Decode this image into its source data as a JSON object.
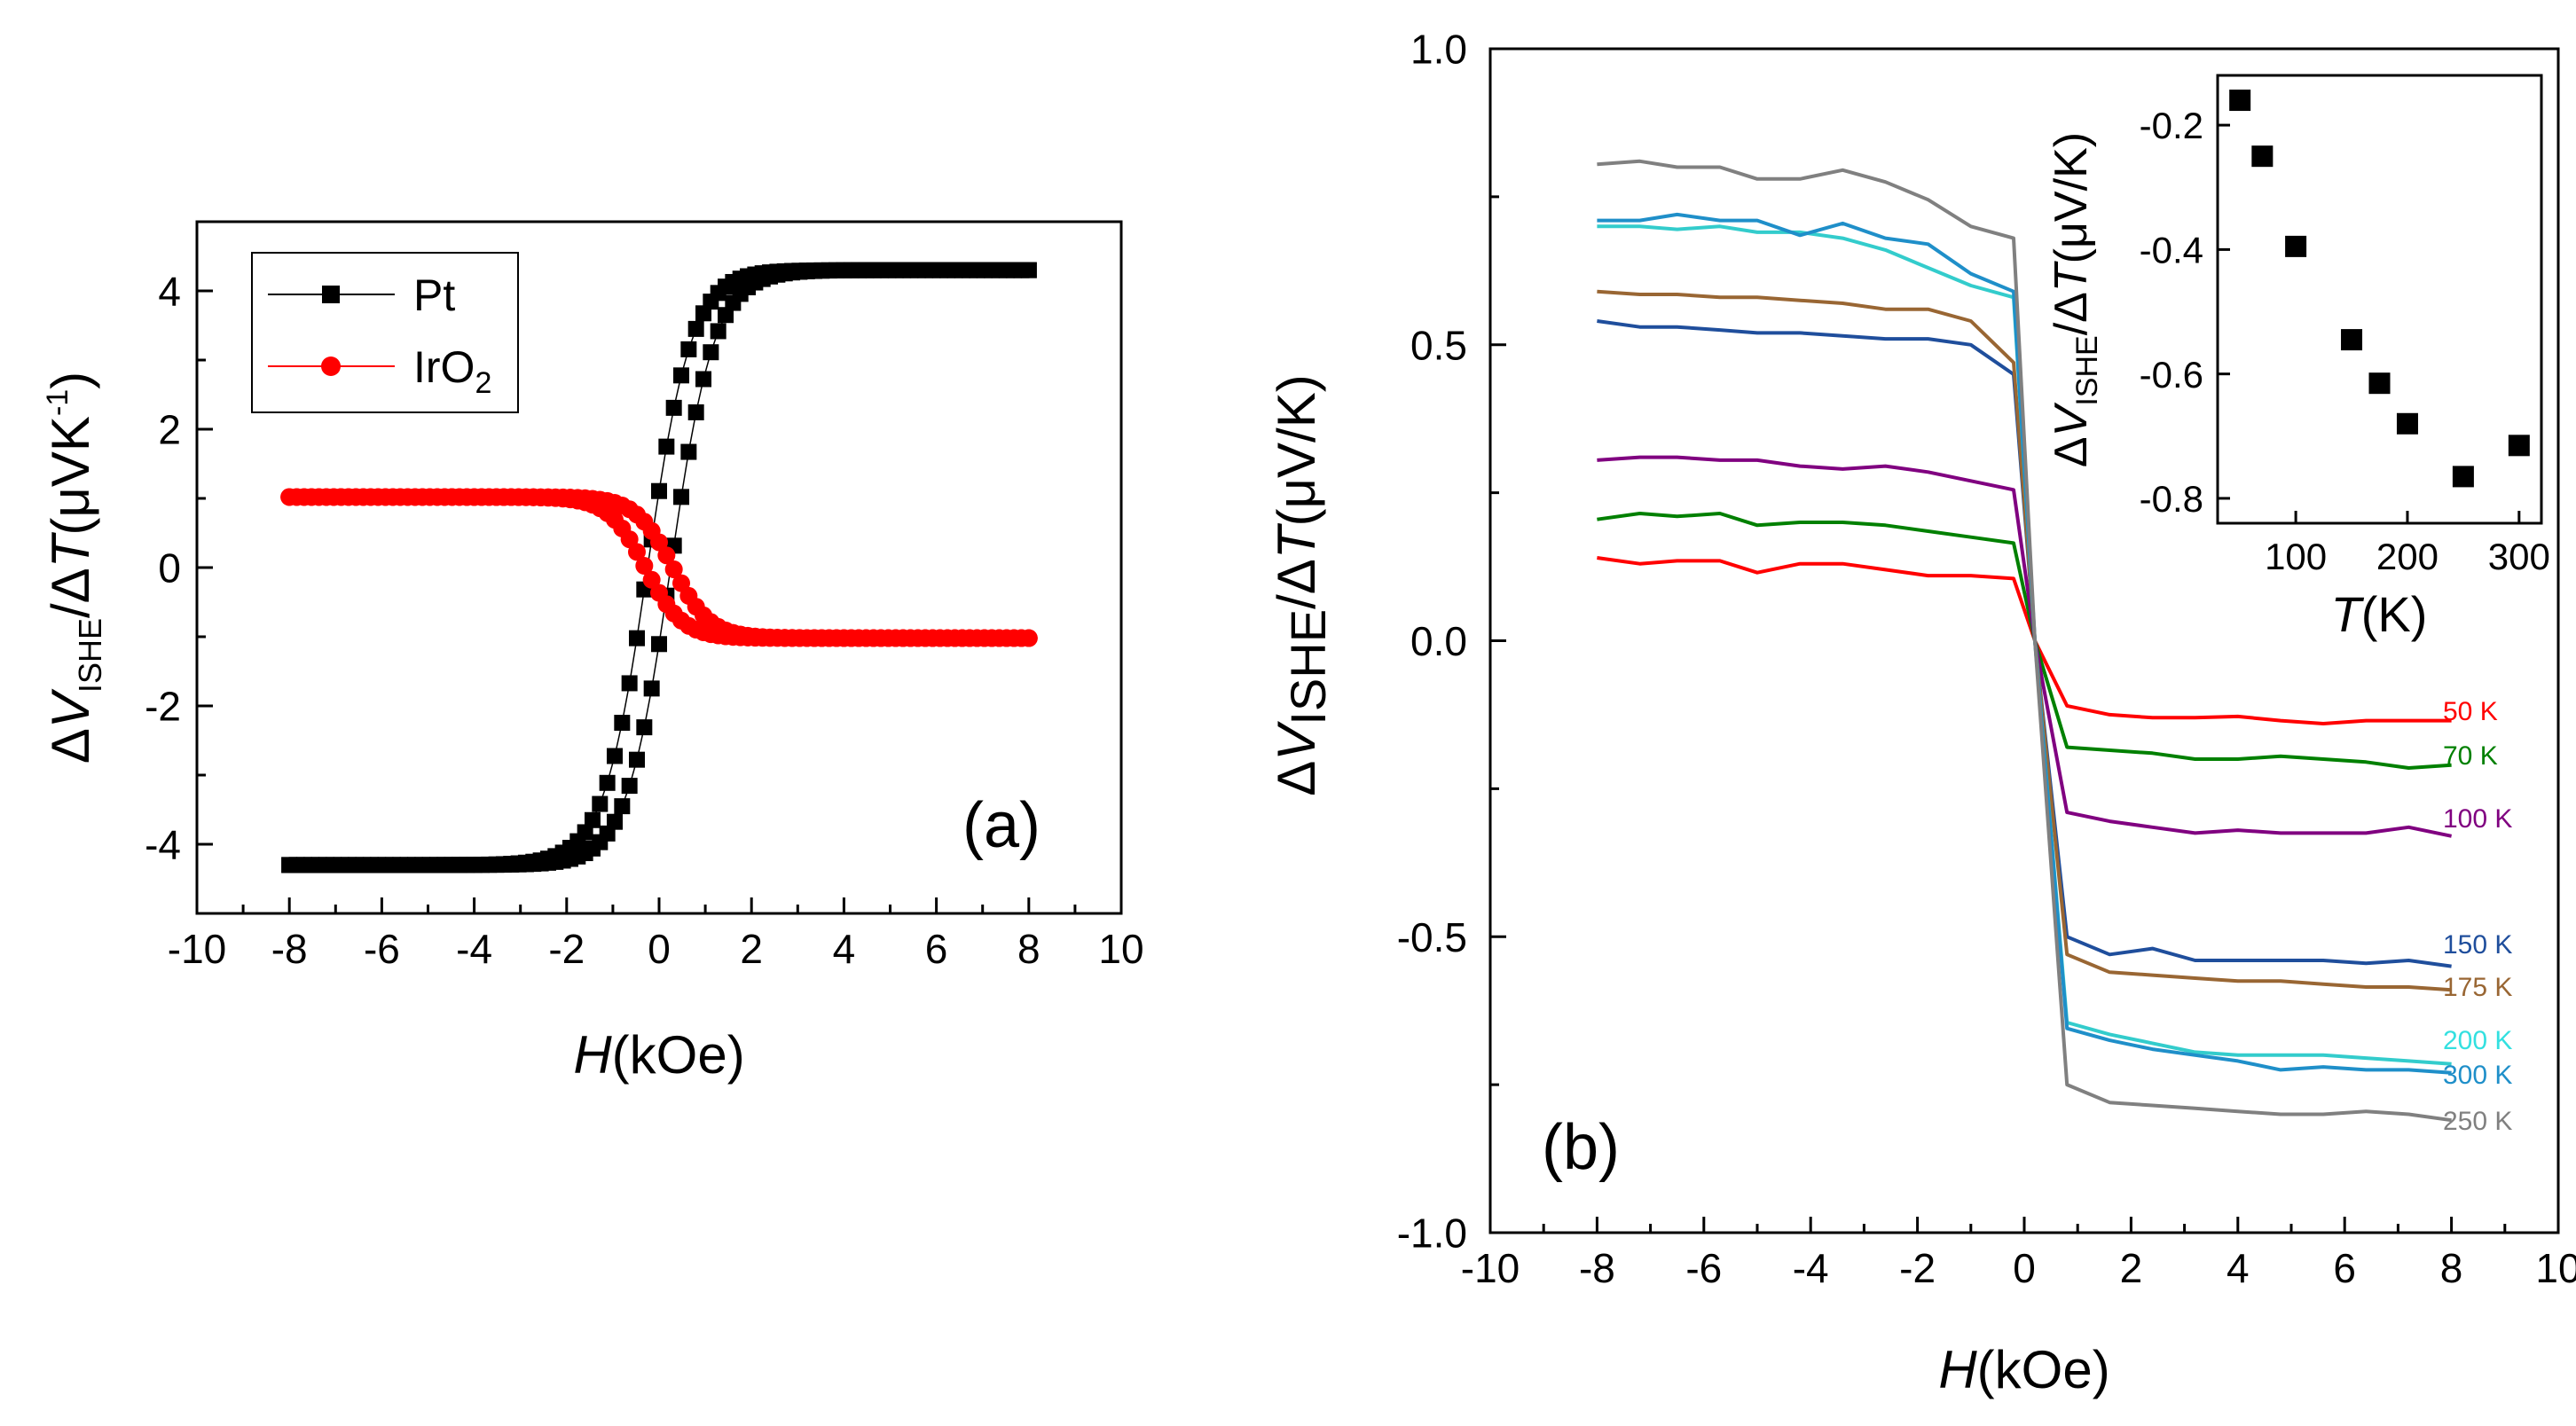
{
  "chart_data": [
    {
      "type": "scatter",
      "panel_label": "(a)",
      "xlabel_italic": "H",
      "xlabel_unit": "(kOe)",
      "ylabel": {
        "delta": "Δ",
        "v": "V",
        "sub": "ISHE",
        "slash": "/",
        "delta2": "Δ",
        "t": "T",
        "unit": "(μVK",
        "exp": "-1",
        "close": ")"
      },
      "xlim": [
        -10,
        10
      ],
      "ylim": [
        -5,
        5
      ],
      "xticks": [
        "-10",
        "-8",
        "-6",
        "-4",
        "-2",
        "0",
        "2",
        "4",
        "6",
        "8",
        "10"
      ],
      "yticks": [
        "-4",
        "-2",
        "0",
        "2",
        "4"
      ],
      "legend": [
        {
          "label": "Pt",
          "sub": "",
          "color": "#000000",
          "marker": "square"
        },
        {
          "label": "IrO",
          "sub": "2",
          "color": "#ff0000",
          "marker": "circle"
        }
      ],
      "series": [
        {
          "name": "Pt",
          "color": "#000000",
          "marker": "square",
          "sat": 4.3,
          "coercive": 0.25,
          "width": 0.95
        },
        {
          "name": "IrO2",
          "color": "#ff0000",
          "marker": "circle",
          "sat": -1.02,
          "coercive": 0.3,
          "width": 0.8
        }
      ]
    },
    {
      "type": "line",
      "panel_label": "(b)",
      "xlabel_italic": "H",
      "xlabel_unit": "(kOe)",
      "ylabel": {
        "delta": "Δ",
        "v": "V",
        "sub": "ISHE",
        "slash": "/",
        "delta2": "Δ",
        "t": "T",
        "unit": "(μV/K)"
      },
      "xlim": [
        -10,
        10
      ],
      "ylim": [
        -1.0,
        1.0
      ],
      "xticks": [
        "-10",
        "-8",
        "-6",
        "-4",
        "-2",
        "0",
        "2",
        "4",
        "6",
        "8",
        "10"
      ],
      "yticks": [
        "-1.0",
        "-0.5",
        "0.0",
        "0.5",
        "1.0"
      ],
      "x": [
        -8,
        -7.2,
        -6.5,
        -5.7,
        -5,
        -4.2,
        -3.4,
        -2.6,
        -1.8,
        -1,
        -0.2,
        0.8,
        1.6,
        2.4,
        3.2,
        4,
        4.8,
        5.6,
        6.4,
        7.2,
        8
      ],
      "series": [
        {
          "name": "50 K",
          "color": "#ff0000",
          "neg": [
            0.14,
            0.13,
            0.135,
            0.135,
            0.115,
            0.13,
            0.13,
            0.12,
            0.11,
            0.11,
            0.105
          ],
          "pos": [
            -0.11,
            -0.125,
            -0.13,
            -0.13,
            -0.128,
            -0.135,
            -0.14,
            -0.135,
            -0.135,
            -0.135,
            -0.14
          ]
        },
        {
          "name": "70 K",
          "color": "#008000",
          "neg": [
            0.205,
            0.215,
            0.21,
            0.215,
            0.195,
            0.2,
            0.2,
            0.195,
            0.185,
            0.175,
            0.165
          ],
          "pos": [
            -0.18,
            -0.185,
            -0.19,
            -0.2,
            -0.2,
            -0.195,
            -0.2,
            -0.205,
            -0.215,
            -0.21,
            -0.21
          ]
        },
        {
          "name": "100 K",
          "color": "#800080",
          "neg": [
            0.305,
            0.31,
            0.31,
            0.305,
            0.305,
            0.295,
            0.29,
            0.295,
            0.285,
            0.27,
            0.255
          ],
          "pos": [
            -0.29,
            -0.305,
            -0.315,
            -0.325,
            -0.32,
            -0.325,
            -0.325,
            -0.325,
            -0.315,
            -0.33,
            -0.335
          ]
        },
        {
          "name": "150 K",
          "color": "#1f4e9c",
          "neg": [
            0.54,
            0.53,
            0.53,
            0.525,
            0.52,
            0.52,
            0.515,
            0.51,
            0.51,
            0.5,
            0.45
          ],
          "pos": [
            -0.5,
            -0.53,
            -0.52,
            -0.54,
            -0.54,
            -0.54,
            -0.54,
            -0.545,
            -0.54,
            -0.55,
            -0.555
          ]
        },
        {
          "name": "175 K",
          "color": "#996633",
          "neg": [
            0.59,
            0.585,
            0.585,
            0.58,
            0.58,
            0.575,
            0.57,
            0.56,
            0.56,
            0.54,
            0.47
          ],
          "pos": [
            -0.53,
            -0.56,
            -0.565,
            -0.57,
            -0.575,
            -0.575,
            -0.58,
            -0.585,
            -0.585,
            -0.59,
            -0.59
          ]
        },
        {
          "name": "200 K",
          "color": "#33cccc",
          "neg": [
            0.7,
            0.7,
            0.695,
            0.7,
            0.69,
            0.69,
            0.68,
            0.66,
            0.63,
            0.6,
            0.58
          ],
          "pos": [
            -0.645,
            -0.665,
            -0.68,
            -0.695,
            -0.7,
            -0.7,
            -0.7,
            -0.705,
            -0.71,
            -0.715,
            -0.725
          ]
        },
        {
          "name": "300 K",
          "color": "#1f8fc9",
          "neg": [
            0.71,
            0.71,
            0.72,
            0.71,
            0.71,
            0.685,
            0.705,
            0.68,
            0.67,
            0.62,
            0.59
          ],
          "pos": [
            -0.655,
            -0.675,
            -0.69,
            -0.7,
            -0.71,
            -0.725,
            -0.72,
            -0.725,
            -0.725,
            -0.73,
            -0.735
          ]
        },
        {
          "name": "250 K",
          "color": "#808080",
          "neg": [
            0.805,
            0.81,
            0.8,
            0.8,
            0.78,
            0.78,
            0.795,
            0.775,
            0.745,
            0.7,
            0.68
          ],
          "pos": [
            -0.75,
            -0.78,
            -0.785,
            -0.79,
            -0.795,
            -0.8,
            -0.8,
            -0.795,
            -0.8,
            -0.81,
            -0.81
          ]
        }
      ],
      "series_labels": [
        {
          "name": "50 K",
          "color": "#ff0000"
        },
        {
          "name": "70 K",
          "color": "#008000"
        },
        {
          "name": "100 K",
          "color": "#800080"
        },
        {
          "name": "150 K",
          "color": "#1f4e9c"
        },
        {
          "name": "175 K",
          "color": "#996633"
        },
        {
          "name": "200 K",
          "color": "#33e0e0"
        },
        {
          "name": "300 K",
          "color": "#1f8fc9"
        },
        {
          "name": "250 K",
          "color": "#808080"
        }
      ],
      "inset": {
        "type": "scatter",
        "xlabel_italic": "T",
        "xlabel_unit": "(K)",
        "ylabel": {
          "delta": "Δ",
          "v": "V",
          "sub": "ISHE",
          "slash": "/",
          "delta2": "Δ",
          "t": "T",
          "unit": "(μV/K)"
        },
        "xlim": [
          30,
          320
        ],
        "ylim": [
          -0.84,
          -0.12
        ],
        "xticks": [
          "100",
          "200",
          "300"
        ],
        "yticks": [
          "-0.2",
          "-0.4",
          "-0.6",
          "-0.8"
        ],
        "x": [
          50,
          70,
          100,
          150,
          175,
          200,
          250,
          300
        ],
        "y": [
          -0.16,
          -0.25,
          -0.395,
          -0.545,
          -0.615,
          -0.68,
          -0.765,
          -0.715
        ]
      }
    }
  ]
}
